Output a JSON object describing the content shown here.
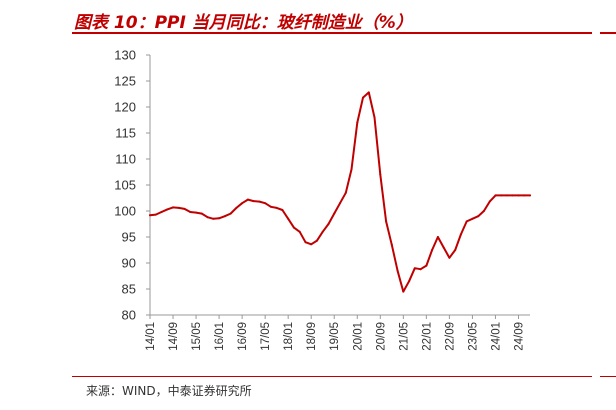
{
  "header": {
    "title": "图表 10：PPI 当月同比：玻纤制造业（%）"
  },
  "footer": {
    "source": "来源：WIND，中泰证券研究所"
  },
  "colors": {
    "accent": "#c00000",
    "line": "#c00000",
    "axis": "#999999"
  },
  "chart_data": {
    "type": "line",
    "title": "PPI 当月同比：玻纤制造业（%）",
    "xlabel": "",
    "ylabel": "",
    "ylim": [
      80,
      130
    ],
    "yticks": [
      80,
      85,
      90,
      95,
      100,
      105,
      110,
      115,
      120,
      125,
      130
    ],
    "xticks": [
      "14/01",
      "14/09",
      "15/05",
      "16/01",
      "16/09",
      "17/05",
      "18/01",
      "18/09",
      "19/05",
      "20/01",
      "20/09",
      "21/05",
      "22/01",
      "22/09",
      "23/05",
      "24/01",
      "24/09"
    ],
    "grid": false,
    "legend": "none",
    "series": [
      {
        "x": [
          "14/01",
          "14/03",
          "14/05",
          "14/07",
          "14/09",
          "14/11",
          "15/01",
          "15/03",
          "15/05",
          "15/07",
          "15/09",
          "15/11",
          "16/01",
          "16/03",
          "16/05",
          "16/07",
          "16/09",
          "16/11",
          "17/01",
          "17/03",
          "17/05",
          "17/07",
          "17/09",
          "17/11",
          "18/01",
          "18/03",
          "18/05",
          "18/07",
          "18/09",
          "18/11",
          "19/01",
          "19/03",
          "19/05",
          "19/07",
          "19/09",
          "19/11",
          "20/01",
          "20/03",
          "20/05",
          "20/07",
          "20/09",
          "20/11",
          "21/01",
          "21/03",
          "21/05",
          "21/07",
          "21/09",
          "21/11",
          "22/01",
          "22/03",
          "22/05",
          "22/07",
          "22/09",
          "22/11",
          "23/01",
          "23/03",
          "23/05",
          "23/07",
          "23/09",
          "23/11",
          "24/01",
          "24/03",
          "24/05",
          "24/07",
          "24/09",
          "24/11",
          "25/01"
        ],
        "values": [
          99.2,
          99.3,
          99.8,
          100.3,
          100.7,
          100.6,
          100.4,
          99.8,
          99.7,
          99.5,
          98.8,
          98.5,
          98.6,
          99.0,
          99.5,
          100.6,
          101.5,
          102.2,
          101.9,
          101.8,
          101.5,
          100.8,
          100.6,
          100.2,
          98.5,
          96.8,
          96.0,
          94.0,
          93.6,
          94.3,
          96.0,
          97.5,
          99.5,
          101.5,
          103.5,
          108.0,
          117.0,
          121.8,
          122.8,
          118.0,
          107.0,
          98.0,
          93.5,
          88.5,
          84.5,
          86.5,
          89.0,
          88.8,
          89.5,
          92.5,
          95.0,
          93.0,
          91.0,
          92.5,
          95.5,
          98.0,
          98.5,
          99.0,
          100.0,
          101.8,
          103.0,
          103.0,
          103.0,
          103.0,
          103.0,
          103.0,
          103.0
        ]
      }
    ]
  }
}
